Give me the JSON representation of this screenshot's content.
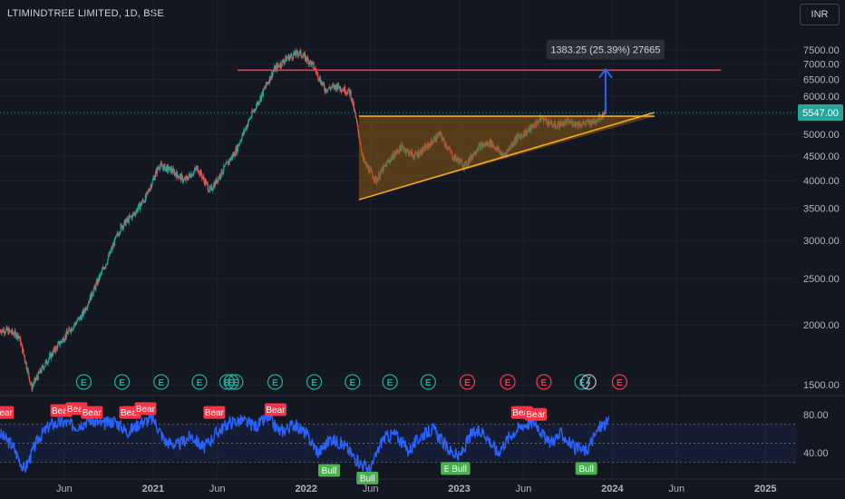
{
  "header": {
    "title": "LTIMINDTREE LIMITED, 1D, BSE",
    "currency_button": "INR"
  },
  "chart_data": {
    "type": "candlestick",
    "title": "LTIMINDTREE LIMITED, 1D, BSE",
    "y_axis": {
      "scale": "log",
      "ticks": [
        1500,
        2000,
        2500,
        3000,
        3500,
        4000,
        4500,
        5000,
        5500,
        6000,
        6500,
        7000,
        7500
      ],
      "tick_labels": [
        "1500.00",
        "2000.00",
        "2500.00",
        "3000.00",
        "3500.00",
        "4000.00",
        "4500.00",
        "5000.00",
        "",
        "6000.00",
        "6500.00",
        "7000.00",
        "7500.00"
      ]
    },
    "x_axis": {
      "tick_labels": [
        "Jun",
        "2021",
        "Jun",
        "2022",
        "Jun",
        "2023",
        "Jun",
        "2024",
        "Jun",
        "2025"
      ],
      "range": [
        "2020-01-01",
        "2025-03-15"
      ]
    },
    "current_price": {
      "value": 5547,
      "label": "5547.00"
    },
    "price_path_monthly": [
      [
        "2020-01",
        1950
      ],
      [
        "2020-02",
        1900
      ],
      [
        "2020-03",
        1480
      ],
      [
        "2020-04",
        1650
      ],
      [
        "2020-05",
        1800
      ],
      [
        "2020-06",
        1950
      ],
      [
        "2020-07",
        2100
      ],
      [
        "2020-08",
        2400
      ],
      [
        "2020-09",
        2750
      ],
      [
        "2020-10",
        3200
      ],
      [
        "2020-11",
        3400
      ],
      [
        "2020-12",
        3700
      ],
      [
        "2021-01",
        4300
      ],
      [
        "2021-02",
        4200
      ],
      [
        "2021-03",
        4000
      ],
      [
        "2021-04",
        4250
      ],
      [
        "2021-05",
        3800
      ],
      [
        "2021-06",
        4200
      ],
      [
        "2021-07",
        4600
      ],
      [
        "2021-08",
        5300
      ],
      [
        "2021-09",
        6000
      ],
      [
        "2021-10",
        6800
      ],
      [
        "2021-11",
        7200
      ],
      [
        "2021-12",
        7400
      ],
      [
        "2022-01",
        7000
      ],
      [
        "2022-02",
        6200
      ],
      [
        "2022-03",
        6300
      ],
      [
        "2022-04",
        6100
      ],
      [
        "2022-05",
        4400
      ],
      [
        "2022-06",
        4000
      ],
      [
        "2022-07",
        4400
      ],
      [
        "2022-08",
        4700
      ],
      [
        "2022-09",
        4500
      ],
      [
        "2022-10",
        4700
      ],
      [
        "2022-11",
        5000
      ],
      [
        "2022-12",
        4500
      ],
      [
        "2023-01",
        4300
      ],
      [
        "2023-02",
        4700
      ],
      [
        "2023-03",
        4800
      ],
      [
        "2023-04",
        4500
      ],
      [
        "2023-05",
        4900
      ],
      [
        "2023-06",
        5100
      ],
      [
        "2023-07",
        5400
      ],
      [
        "2023-08",
        5200
      ],
      [
        "2023-09",
        5300
      ],
      [
        "2023-10",
        5250
      ],
      [
        "2023-11",
        5300
      ],
      [
        "2023-12",
        5547
      ]
    ],
    "drawings": {
      "resistance_line_price": 6800,
      "triangle": {
        "top_price": 5450,
        "top_start": "2022-05-05",
        "top_end": "2024-04-10",
        "low_price": 3650,
        "low_date": "2022-05-05",
        "apex_price": 5550,
        "apex_date": "2024-04-10"
      },
      "measure_arrow": {
        "date": "2023-12-15",
        "from_price": 5500,
        "to_price": 6820,
        "label": "1383.25 (25.39%) 27665"
      }
    },
    "earnings_markers": [
      {
        "date": "2020-07-18",
        "label": "E",
        "color": "#26a69a"
      },
      {
        "date": "2020-10-18",
        "label": "E",
        "color": "#26a69a"
      },
      {
        "date": "2021-01-20",
        "label": "E",
        "color": "#26a69a"
      },
      {
        "date": "2021-04-20",
        "label": "E",
        "color": "#26a69a"
      },
      {
        "date": "2021-06-25",
        "label": "E",
        "color": "#26a69a"
      },
      {
        "date": "2021-07-05",
        "label": "E",
        "color": "#26a69a"
      },
      {
        "date": "2021-07-15",
        "label": "E",
        "color": "#26a69a"
      },
      {
        "date": "2021-10-18",
        "label": "E",
        "color": "#26a69a"
      },
      {
        "date": "2022-01-20",
        "label": "E",
        "color": "#26a69a"
      },
      {
        "date": "2022-04-20",
        "label": "E",
        "color": "#26a69a"
      },
      {
        "date": "2022-07-18",
        "label": "E",
        "color": "#26a69a"
      },
      {
        "date": "2022-10-18",
        "label": "E",
        "color": "#26a69a"
      },
      {
        "date": "2023-01-20",
        "label": "E",
        "color": "#f23645"
      },
      {
        "date": "2023-04-25",
        "label": "E",
        "color": "#f23645"
      },
      {
        "date": "2023-07-20",
        "label": "E",
        "color": "#f23645"
      },
      {
        "date": "2023-10-20",
        "label": "E",
        "color": "#26a69a"
      },
      {
        "date": "2024-01-18",
        "label": "E",
        "color": "#f23645"
      }
    ],
    "dividend_marker": {
      "date": "2023-11-05"
    },
    "indicator": {
      "type": "line",
      "ticks": [
        80,
        40
      ],
      "tick_labels": [
        "80.00",
        "40.00"
      ],
      "band": [
        30,
        70
      ],
      "ylim": [
        20,
        85
      ],
      "color": "#2962ff",
      "path_monthly": [
        [
          2020.0,
          60
        ],
        [
          2020.08,
          48
        ],
        [
          2020.16,
          22
        ],
        [
          2020.25,
          55
        ],
        [
          2020.33,
          70
        ],
        [
          2020.42,
          72
        ],
        [
          2020.5,
          68
        ],
        [
          2020.58,
          75
        ],
        [
          2020.67,
          70
        ],
        [
          2020.75,
          74
        ],
        [
          2020.83,
          62
        ],
        [
          2020.92,
          72
        ],
        [
          2021.0,
          76
        ],
        [
          2021.08,
          52
        ],
        [
          2021.16,
          48
        ],
        [
          2021.25,
          58
        ],
        [
          2021.33,
          45
        ],
        [
          2021.42,
          62
        ],
        [
          2021.5,
          72
        ],
        [
          2021.58,
          74
        ],
        [
          2021.67,
          68
        ],
        [
          2021.75,
          77
        ],
        [
          2021.83,
          62
        ],
        [
          2021.92,
          70
        ],
        [
          2022.0,
          60
        ],
        [
          2022.08,
          40
        ],
        [
          2022.16,
          55
        ],
        [
          2022.25,
          48
        ],
        [
          2022.33,
          32
        ],
        [
          2022.42,
          22
        ],
        [
          2022.5,
          55
        ],
        [
          2022.58,
          60
        ],
        [
          2022.67,
          42
        ],
        [
          2022.75,
          58
        ],
        [
          2022.83,
          65
        ],
        [
          2022.92,
          45
        ],
        [
          2023.0,
          35
        ],
        [
          2023.08,
          60
        ],
        [
          2023.16,
          62
        ],
        [
          2023.25,
          40
        ],
        [
          2023.33,
          58
        ],
        [
          2023.42,
          70
        ],
        [
          2023.5,
          72
        ],
        [
          2023.58,
          50
        ],
        [
          2023.67,
          60
        ],
        [
          2023.75,
          45
        ],
        [
          2023.83,
          42
        ],
        [
          2023.92,
          68
        ],
        [
          2023.98,
          72
        ]
      ],
      "signals": [
        {
          "label": "Bear",
          "t": 2020.02,
          "value": 72,
          "color": "#f23645"
        },
        {
          "label": "Bear",
          "t": 2020.4,
          "value": 74,
          "color": "#f23645"
        },
        {
          "label": "Bear",
          "t": 2020.5,
          "value": 76,
          "color": "#f23645"
        },
        {
          "label": "Bear",
          "t": 2020.6,
          "value": 72,
          "color": "#f23645"
        },
        {
          "label": "Bear",
          "t": 2020.85,
          "value": 72,
          "color": "#f23645"
        },
        {
          "label": "Bear",
          "t": 2020.95,
          "value": 76,
          "color": "#f23645"
        },
        {
          "label": "Bear",
          "t": 2021.4,
          "value": 72,
          "color": "#f23645"
        },
        {
          "label": "Bear",
          "t": 2021.8,
          "value": 75,
          "color": "#f23645"
        },
        {
          "label": "Bull",
          "t": 2022.15,
          "value": 32,
          "color": "#4caf50"
        },
        {
          "label": "Bull",
          "t": 2022.4,
          "value": 24,
          "color": "#4caf50"
        },
        {
          "label": "Bull",
          "t": 2022.95,
          "value": 34,
          "color": "#4caf50"
        },
        {
          "label": "Bull",
          "t": 2023.0,
          "value": 34,
          "color": "#4caf50"
        },
        {
          "label": "Bear",
          "t": 2023.41,
          "value": 72,
          "color": "#f23645"
        },
        {
          "label": "Bear",
          "t": 2023.5,
          "value": 70,
          "color": "#f23645"
        },
        {
          "label": "Bull",
          "t": 2023.83,
          "value": 34,
          "color": "#4caf50"
        }
      ]
    },
    "colors": {
      "background": "#131722",
      "up": "#26a69a",
      "down": "#ef5350",
      "resistance": "#f23645",
      "triangle_line": "#f7a81b",
      "triangle_fill": "#8a5a13",
      "measure": "#2962ff",
      "price_tag": "#26a69a"
    }
  }
}
